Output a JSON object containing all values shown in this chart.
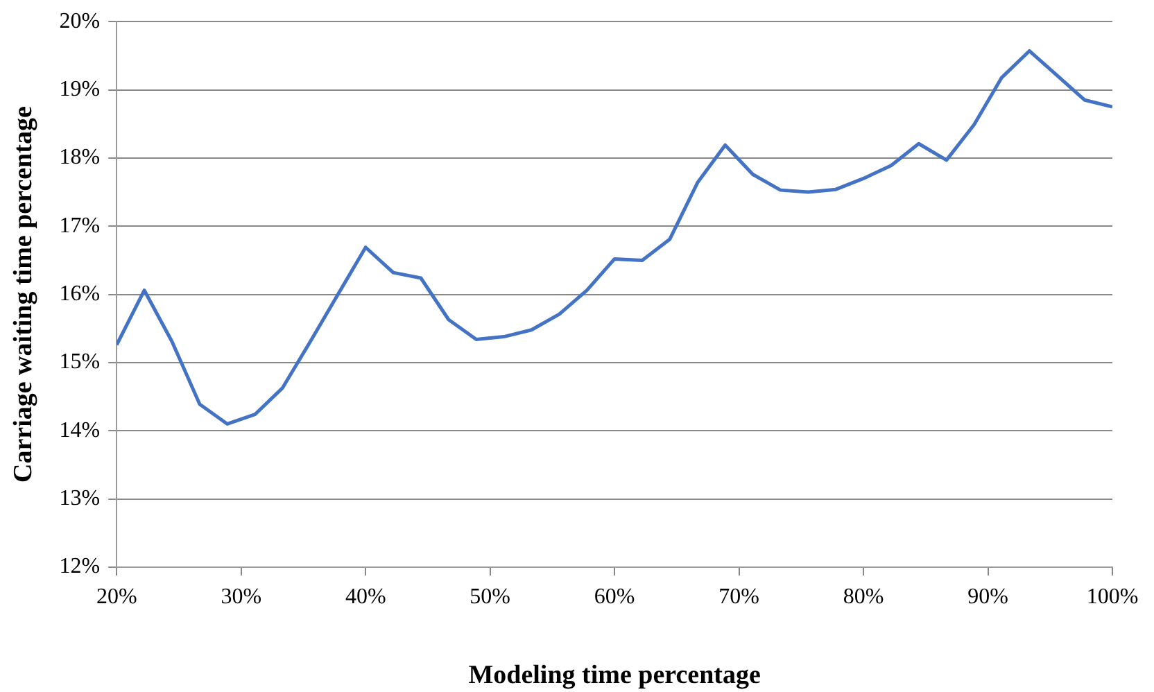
{
  "chart_data": {
    "type": "line",
    "xlabel": "Modeling time percentage",
    "ylabel": "Carriage waiting time percentage",
    "x": [
      20,
      22.22,
      24.44,
      26.67,
      28.89,
      31.11,
      33.33,
      35.56,
      37.78,
      40,
      42.22,
      44.44,
      46.67,
      48.89,
      51.11,
      53.33,
      55.56,
      57.78,
      60,
      62.22,
      64.44,
      66.67,
      68.89,
      71.11,
      73.33,
      75.56,
      77.78,
      80,
      82.22,
      84.44,
      86.67,
      88.89,
      91.11,
      93.33,
      95.56,
      97.78,
      100
    ],
    "values": [
      15.26,
      16.06,
      15.31,
      14.39,
      14.1,
      14.24,
      14.63,
      15.31,
      16.0,
      16.69,
      16.32,
      16.24,
      15.63,
      15.34,
      15.38,
      15.48,
      15.71,
      16.06,
      16.52,
      16.5,
      16.81,
      17.64,
      18.19,
      17.76,
      17.53,
      17.5,
      17.54,
      17.7,
      17.89,
      18.21,
      17.97,
      18.49,
      19.18,
      19.57,
      19.21,
      18.85,
      18.75
    ],
    "color": "#4472c4",
    "marker": "none",
    "line_style": "solid",
    "grid": "y",
    "legend": false,
    "xlim": [
      20,
      100
    ],
    "xticks": [
      {
        "value": 20,
        "label": "20%"
      },
      {
        "value": 30,
        "label": "30%"
      },
      {
        "value": 40,
        "label": "40%"
      },
      {
        "value": 50,
        "label": "50%"
      },
      {
        "value": 60,
        "label": "60%"
      },
      {
        "value": 70,
        "label": "70%"
      },
      {
        "value": 80,
        "label": "80%"
      },
      {
        "value": 90,
        "label": "90%"
      },
      {
        "value": 100,
        "label": "100%"
      }
    ],
    "ylim": [
      12,
      20
    ],
    "yticks": [
      {
        "value": 12,
        "label": "12%"
      },
      {
        "value": 13,
        "label": "13%"
      },
      {
        "value": 14,
        "label": "14%"
      },
      {
        "value": 15,
        "label": "15%"
      },
      {
        "value": 16,
        "label": "16%"
      },
      {
        "value": 17,
        "label": "17%"
      },
      {
        "value": 18,
        "label": "18%"
      },
      {
        "value": 19,
        "label": "19%"
      },
      {
        "value": 20,
        "label": "20%"
      }
    ]
  }
}
